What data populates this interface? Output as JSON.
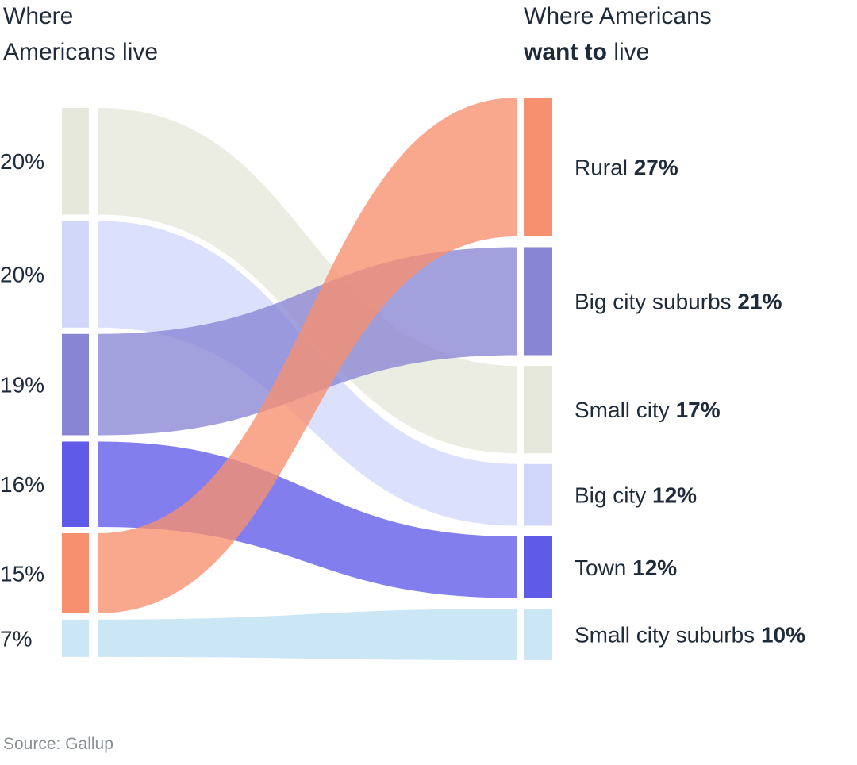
{
  "header": {
    "left_title_line1": "Where",
    "left_title_line2": "Americans live",
    "right_title_line1": "Where Americans",
    "right_title_bold": "want to",
    "right_title_rest": " live"
  },
  "source": "Source: Gallup",
  "colors": {
    "Rural": "#f7906e",
    "Big city suburbs": "#8985d5",
    "Small city": "#e5e8da",
    "Big city": "#d1d7fb",
    "Town": "#5f5ae8",
    "Small city suburbs": "#cbe6f4"
  },
  "chart_data": {
    "type": "sankey",
    "left_title": "Where Americans live",
    "right_title": "Where Americans want to live",
    "left_order": [
      "Small city",
      "Big city",
      "Big city suburbs",
      "Town",
      "Rural",
      "Small city suburbs"
    ],
    "right_order": [
      "Rural",
      "Big city suburbs",
      "Small city",
      "Big city",
      "Town",
      "Small city suburbs"
    ],
    "left": [
      {
        "category": "Small city",
        "label": "20%",
        "value": 20
      },
      {
        "category": "Big city",
        "label": "20%",
        "value": 20
      },
      {
        "category": "Big city suburbs",
        "label": "19%",
        "value": 19
      },
      {
        "category": "Town",
        "label": "16%",
        "value": 16
      },
      {
        "category": "Rural",
        "label": "15%",
        "value": 15
      },
      {
        "category": "Small city suburbs",
        "label": "7%",
        "value": 7
      }
    ],
    "right": [
      {
        "category": "Rural",
        "value_label": "27%",
        "value": 27
      },
      {
        "category": "Big city suburbs",
        "value_label": "21%",
        "value": 21
      },
      {
        "category": "Small city",
        "value_label": "17%",
        "value": 17
      },
      {
        "category": "Big city",
        "value_label": "12%",
        "value": 12
      },
      {
        "category": "Town",
        "value_label": "12%",
        "value": 12
      },
      {
        "category": "Small city suburbs",
        "value_label": "10%",
        "value": 10
      }
    ]
  }
}
